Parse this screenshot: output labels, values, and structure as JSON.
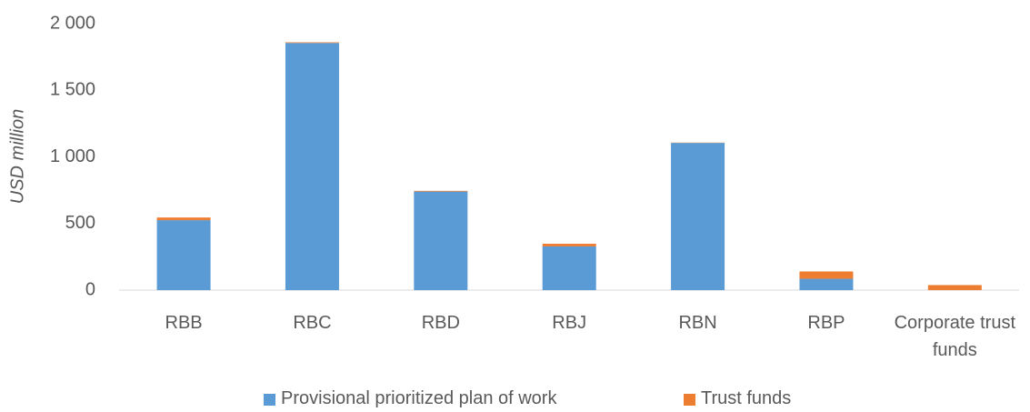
{
  "chart_data": {
    "type": "bar",
    "stacked": true,
    "y_label": "USD million",
    "categories": [
      "RBB",
      "RBC",
      "RBD",
      "RBJ",
      "RBN",
      "RBP",
      "Corporate trust funds"
    ],
    "series": [
      {
        "name": "Provisional prioritized plan of work",
        "color": "#5b9bd5",
        "values": [
          525,
          1855,
          740,
          328,
          1105,
          85,
          0
        ]
      },
      {
        "name": "Trust funds",
        "color": "#ed7d31",
        "values": [
          20,
          5,
          5,
          20,
          2,
          55,
          38
        ]
      }
    ],
    "ylim": [
      0,
      2000
    ],
    "yticks": [
      0,
      500,
      {
        "value": 1000,
        "label": "1 000"
      },
      {
        "value": 1500,
        "label": "1 500"
      },
      {
        "value": 2000,
        "label": "2 000"
      }
    ],
    "grid": false,
    "legend": "bottom"
  }
}
